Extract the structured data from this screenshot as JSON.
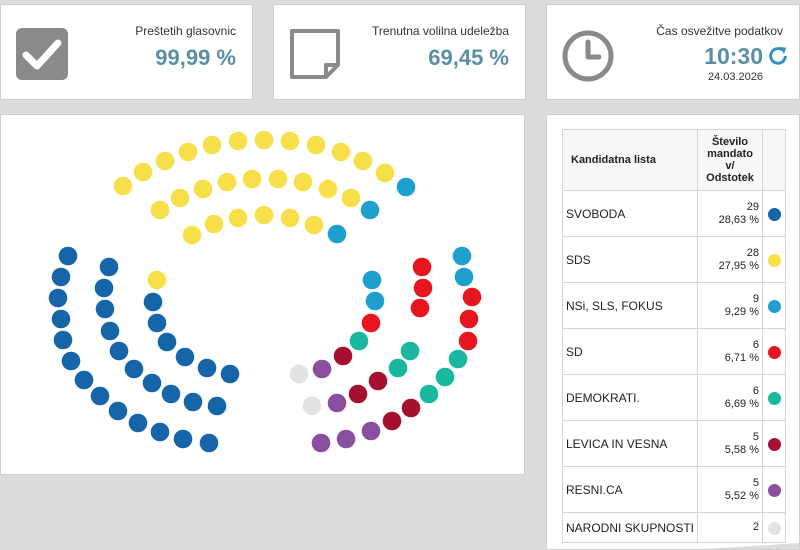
{
  "stats": {
    "counted": {
      "label": "Preštetih glasovnic",
      "value": "99,99 %",
      "icon": "checkmark-icon"
    },
    "turnout": {
      "label": "Trenutna volilna udeležba",
      "value": "69,45 %",
      "icon": "document-icon"
    },
    "refresh": {
      "label": "Čas osvežitve podatkov",
      "time": "10:30",
      "date": "24.03.2026",
      "icon": "clock-icon",
      "action_icon": "refresh-icon"
    }
  },
  "colors": {
    "stat_value": "#5b8fa6",
    "icon_gray": "#8a8a8a",
    "refresh_blue": "#2f8fc3"
  },
  "table": {
    "headers": {
      "list": "Kandidatna lista",
      "seats_line1": "Število",
      "seats_line2": "mandato",
      "seats_line3": "v/",
      "seats_line4": "Odstotek"
    },
    "rows": [
      {
        "name": "SVOBODA",
        "seats": "29",
        "percent": "28,63 %",
        "color": "#1565a8"
      },
      {
        "name": "SDS",
        "seats": "28",
        "percent": "27,95 %",
        "color": "#f7df4a"
      },
      {
        "name": "NSi, SLS, FOKUS",
        "seats": "9",
        "percent": "9,29 %",
        "color": "#1ea0cf"
      },
      {
        "name": "SD",
        "seats": "6",
        "percent": "6,71 %",
        "color": "#e8141e"
      },
      {
        "name": "DEMOKRATI.",
        "seats": "6",
        "percent": "6,69 %",
        "color": "#1bb8a0"
      },
      {
        "name": "LEVICA IN VESNA",
        "seats": "5",
        "percent": "5,58 %",
        "color": "#a5102e"
      },
      {
        "name": "RESNI.CA",
        "seats": "5",
        "percent": "5,52 %",
        "color": "#8a4f9e"
      },
      {
        "name": "NARODNI SKUPNOSTI",
        "seats": "2",
        "percent": "",
        "color": "#e2e2e2"
      }
    ]
  }
}
